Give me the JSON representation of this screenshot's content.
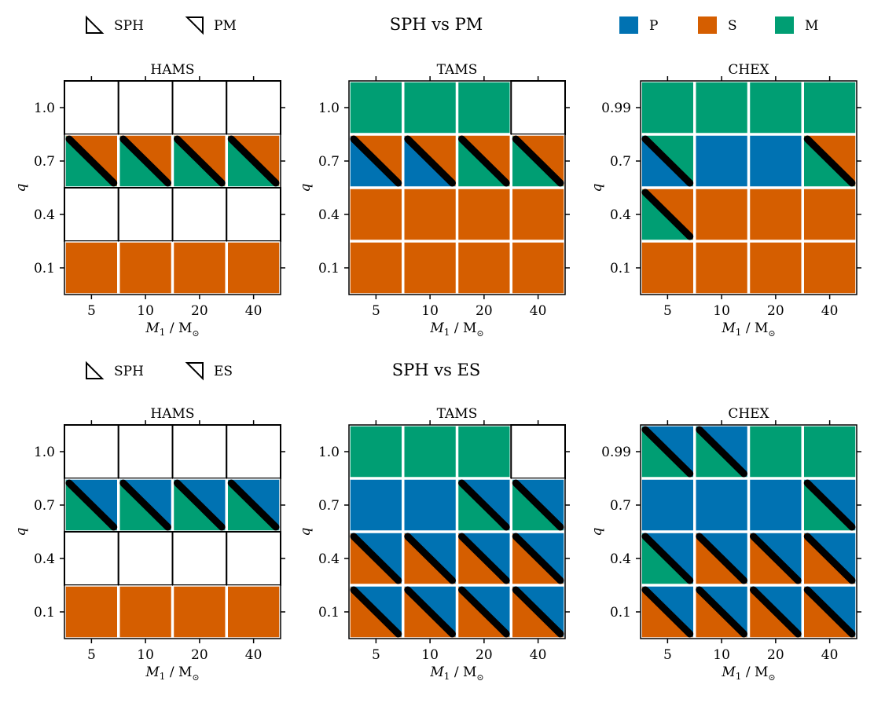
{
  "colors": {
    "P": "#0072b2",
    "S": "#d55e00",
    "M": "#009e73",
    "empty": "#ffffff"
  },
  "chart_data": {
    "type": "heatmap",
    "x_label": "M",
    "x_label_sub": "1",
    "x_label_unit": " / M",
    "x_label_unit_sub": "⊙",
    "y_label": "q",
    "columns": [
      "5",
      "10",
      "20",
      "40"
    ],
    "rows": [
      {
        "title": "SPH vs PM",
        "legend_split": {
          "first": "SPH",
          "second": "PM"
        },
        "panels": [
          {
            "title": "HAMS",
            "y_ticks": [
              "1.0",
              "0.7",
              "0.4",
              "0.1"
            ],
            "cells": [
              [
                "",
                "",
                "",
                ""
              ],
              [
                "S|M",
                "S|M",
                "S|M",
                "S|M"
              ],
              [
                "",
                "",
                "",
                ""
              ],
              [
                "S",
                "S",
                "S",
                "S"
              ]
            ]
          },
          {
            "title": "TAMS",
            "y_ticks": [
              "1.0",
              "0.7",
              "0.4",
              "0.1"
            ],
            "cells": [
              [
                "M",
                "M",
                "M",
                ""
              ],
              [
                "S|P",
                "S|P",
                "S|M",
                "S|M"
              ],
              [
                "S",
                "S",
                "S",
                "S"
              ],
              [
                "S",
                "S",
                "S",
                "S"
              ]
            ]
          },
          {
            "title": "CHEX",
            "y_ticks": [
              "0.99",
              "0.7",
              "0.4",
              "0.1"
            ],
            "cells": [
              [
                "M",
                "M",
                "M",
                "M"
              ],
              [
                "M|P",
                "P",
                "P",
                "S|M"
              ],
              [
                "S|M",
                "S",
                "S",
                "S"
              ],
              [
                "S",
                "S",
                "S",
                "S"
              ]
            ]
          }
        ]
      },
      {
        "title": "SPH vs ES",
        "legend_split": {
          "first": "SPH",
          "second": "ES"
        },
        "panels": [
          {
            "title": "HAMS",
            "y_ticks": [
              "1.0",
              "0.7",
              "0.4",
              "0.1"
            ],
            "cells": [
              [
                "",
                "",
                "",
                ""
              ],
              [
                "P|M",
                "P|M",
                "P|M",
                "P|M"
              ],
              [
                "",
                "",
                "",
                ""
              ],
              [
                "S",
                "S",
                "S",
                "S"
              ]
            ]
          },
          {
            "title": "TAMS",
            "y_ticks": [
              "1.0",
              "0.7",
              "0.4",
              "0.1"
            ],
            "cells": [
              [
                "M",
                "M",
                "M",
                ""
              ],
              [
                "P",
                "P",
                "P|M",
                "P|M"
              ],
              [
                "P|S",
                "P|S",
                "P|S",
                "P|S"
              ],
              [
                "P|S",
                "P|S",
                "P|S",
                "P|S"
              ]
            ]
          },
          {
            "title": "CHEX",
            "y_ticks": [
              "0.99",
              "0.7",
              "0.4",
              "0.1"
            ],
            "cells": [
              [
                "P|M",
                "P|M",
                "M",
                "M"
              ],
              [
                "P",
                "P",
                "P",
                "P|M"
              ],
              [
                "P|M",
                "P|S",
                "P|S",
                "P|S"
              ],
              [
                "P|S",
                "P|S",
                "P|S",
                "P|S"
              ]
            ]
          }
        ]
      }
    ],
    "legend_categories": [
      {
        "key": "P",
        "label": "P"
      },
      {
        "key": "S",
        "label": "S"
      },
      {
        "key": "M",
        "label": "M"
      }
    ]
  }
}
